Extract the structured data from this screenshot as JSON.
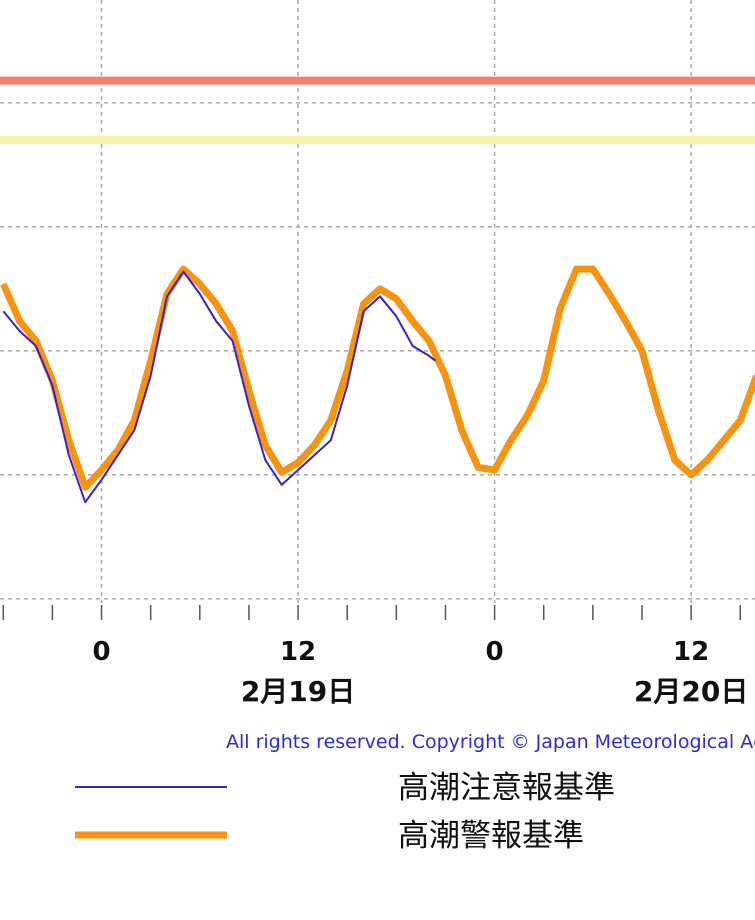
{
  "chart_data": {
    "type": "line",
    "xlim": [
      -6.2,
      39.9
    ],
    "ylim": [
      -58.5,
      191.5
    ],
    "xticks": [
      {
        "value": 0,
        "label": "0"
      },
      12,
      {
        "value": 24,
        "label": "0"
      },
      {
        "value": 36,
        "label": "12"
      }
    ],
    "xminorticks": [
      -6,
      -3,
      3,
      6,
      9,
      15,
      18,
      21,
      27,
      30,
      33,
      39
    ],
    "ygrid": [
      -50,
      0,
      50,
      100,
      150
    ],
    "grid": true,
    "date_labels": [
      {
        "value": 12,
        "label": "2月19日"
      },
      {
        "value": 36,
        "label": "2月20日"
      }
    ],
    "copyright": "All rights reserved. Copyright © Japan Meteorological Agency",
    "reference_lines": [
      {
        "value": 159,
        "color": "#f27d6c"
      },
      {
        "value": 135,
        "color": "#f7f3a6"
      }
    ],
    "series": [
      {
        "name": "高潮注意報基準",
        "color": "#3a22c8",
        "x": [
          -6,
          -5,
          -4,
          -3,
          -2,
          -1,
          0,
          1,
          2,
          3,
          4,
          5,
          6,
          7,
          8,
          9,
          10,
          11,
          12,
          13,
          14,
          15,
          16,
          17,
          18,
          19,
          20,
          20.4
        ],
        "values": [
          66,
          58,
          52,
          36,
          8,
          -11,
          -2,
          8,
          18,
          40,
          72,
          82,
          73,
          62,
          54,
          28,
          6,
          -4,
          2,
          8,
          14,
          36,
          66,
          72,
          64,
          52,
          48,
          46
        ]
      },
      {
        "name": "高潮警報基準",
        "color": "#f7930f",
        "x": [
          -6,
          -5,
          -4,
          -3,
          -2,
          -1,
          0,
          1,
          2,
          3,
          4,
          5,
          6,
          7,
          8,
          9,
          10,
          11,
          12,
          13,
          14,
          15,
          16,
          17,
          18,
          19,
          20,
          21,
          22,
          23,
          24,
          25,
          26,
          27,
          28,
          29,
          30,
          31,
          32,
          33,
          34,
          35,
          36,
          37,
          38,
          39,
          40
        ],
        "values": [
          77,
          62,
          54,
          38,
          14,
          -5,
          2,
          10,
          22,
          46,
          73,
          83,
          77,
          69,
          58,
          34,
          12,
          1,
          5,
          12,
          22,
          42,
          69,
          75,
          71,
          62,
          54,
          40,
          18,
          3,
          2,
          14,
          24,
          38,
          67,
          83,
          83,
          73,
          62,
          50,
          26,
          6,
          0,
          6,
          14,
          22,
          40
        ]
      }
    ]
  }
}
